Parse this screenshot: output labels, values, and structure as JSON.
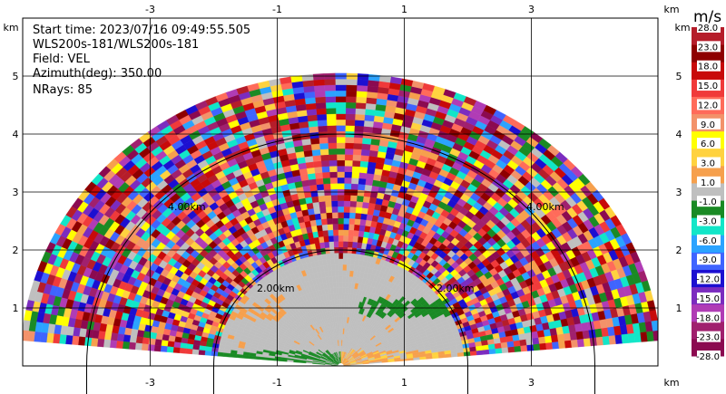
{
  "header": {
    "start_time": "Start time: 2023/07/16 09:49:55.505",
    "instrument": "WLS200s-181/WLS200s-181",
    "field": "Field: VEL",
    "azimuth": "Azimuth(deg): 350.00",
    "nrays": "NRays: 85"
  },
  "chart_data": {
    "type": "heatmap",
    "description_kind": "RHI radar scan (velocity)",
    "x_unit": "km",
    "y_unit": "km",
    "xlim": [
      -4.1,
      5.8
    ],
    "ylim": [
      0,
      5.9
    ],
    "x_ticks": [
      -3,
      -1,
      1,
      3
    ],
    "x_tick_labels": [
      "-3",
      "-1",
      "1",
      "3"
    ],
    "y_ticks": [
      1,
      2,
      3,
      4,
      5
    ],
    "y_tick_labels": [
      "1",
      "2",
      "3",
      "4",
      "5"
    ],
    "range_rings_km": [
      2,
      4
    ],
    "range_ring_labels": [
      "2.00km",
      "2.00km",
      "4.00km",
      "4.00km"
    ],
    "grid": true,
    "max_range_km": 5.0,
    "colorbar": {
      "unit": "m/s",
      "tick_labels": [
        "-28.0",
        "-23.0",
        "-18.0",
        "-15.0",
        "-12.0",
        "-9.0",
        "-6.0",
        "-3.0",
        "-1.0",
        "1.0",
        "3.0",
        "6.0",
        "9.0",
        "12.0",
        "15.0",
        "18.0",
        "23.0",
        "28.0"
      ],
      "colors": [
        "#8b0a50",
        "#a0206e",
        "#b03cb5",
        "#7b2cbf",
        "#1c0fd1",
        "#3f64ff",
        "#2ba3ff",
        "#12e6c8",
        "#1a8a24",
        "#bfbfbf",
        "#f6a04d",
        "#ffd23f",
        "#ffff00",
        "#f3926a",
        "#ff6b5a",
        "#f03a3a",
        "#c80a0a",
        "#8e0000",
        "#b51d2a"
      ]
    }
  }
}
